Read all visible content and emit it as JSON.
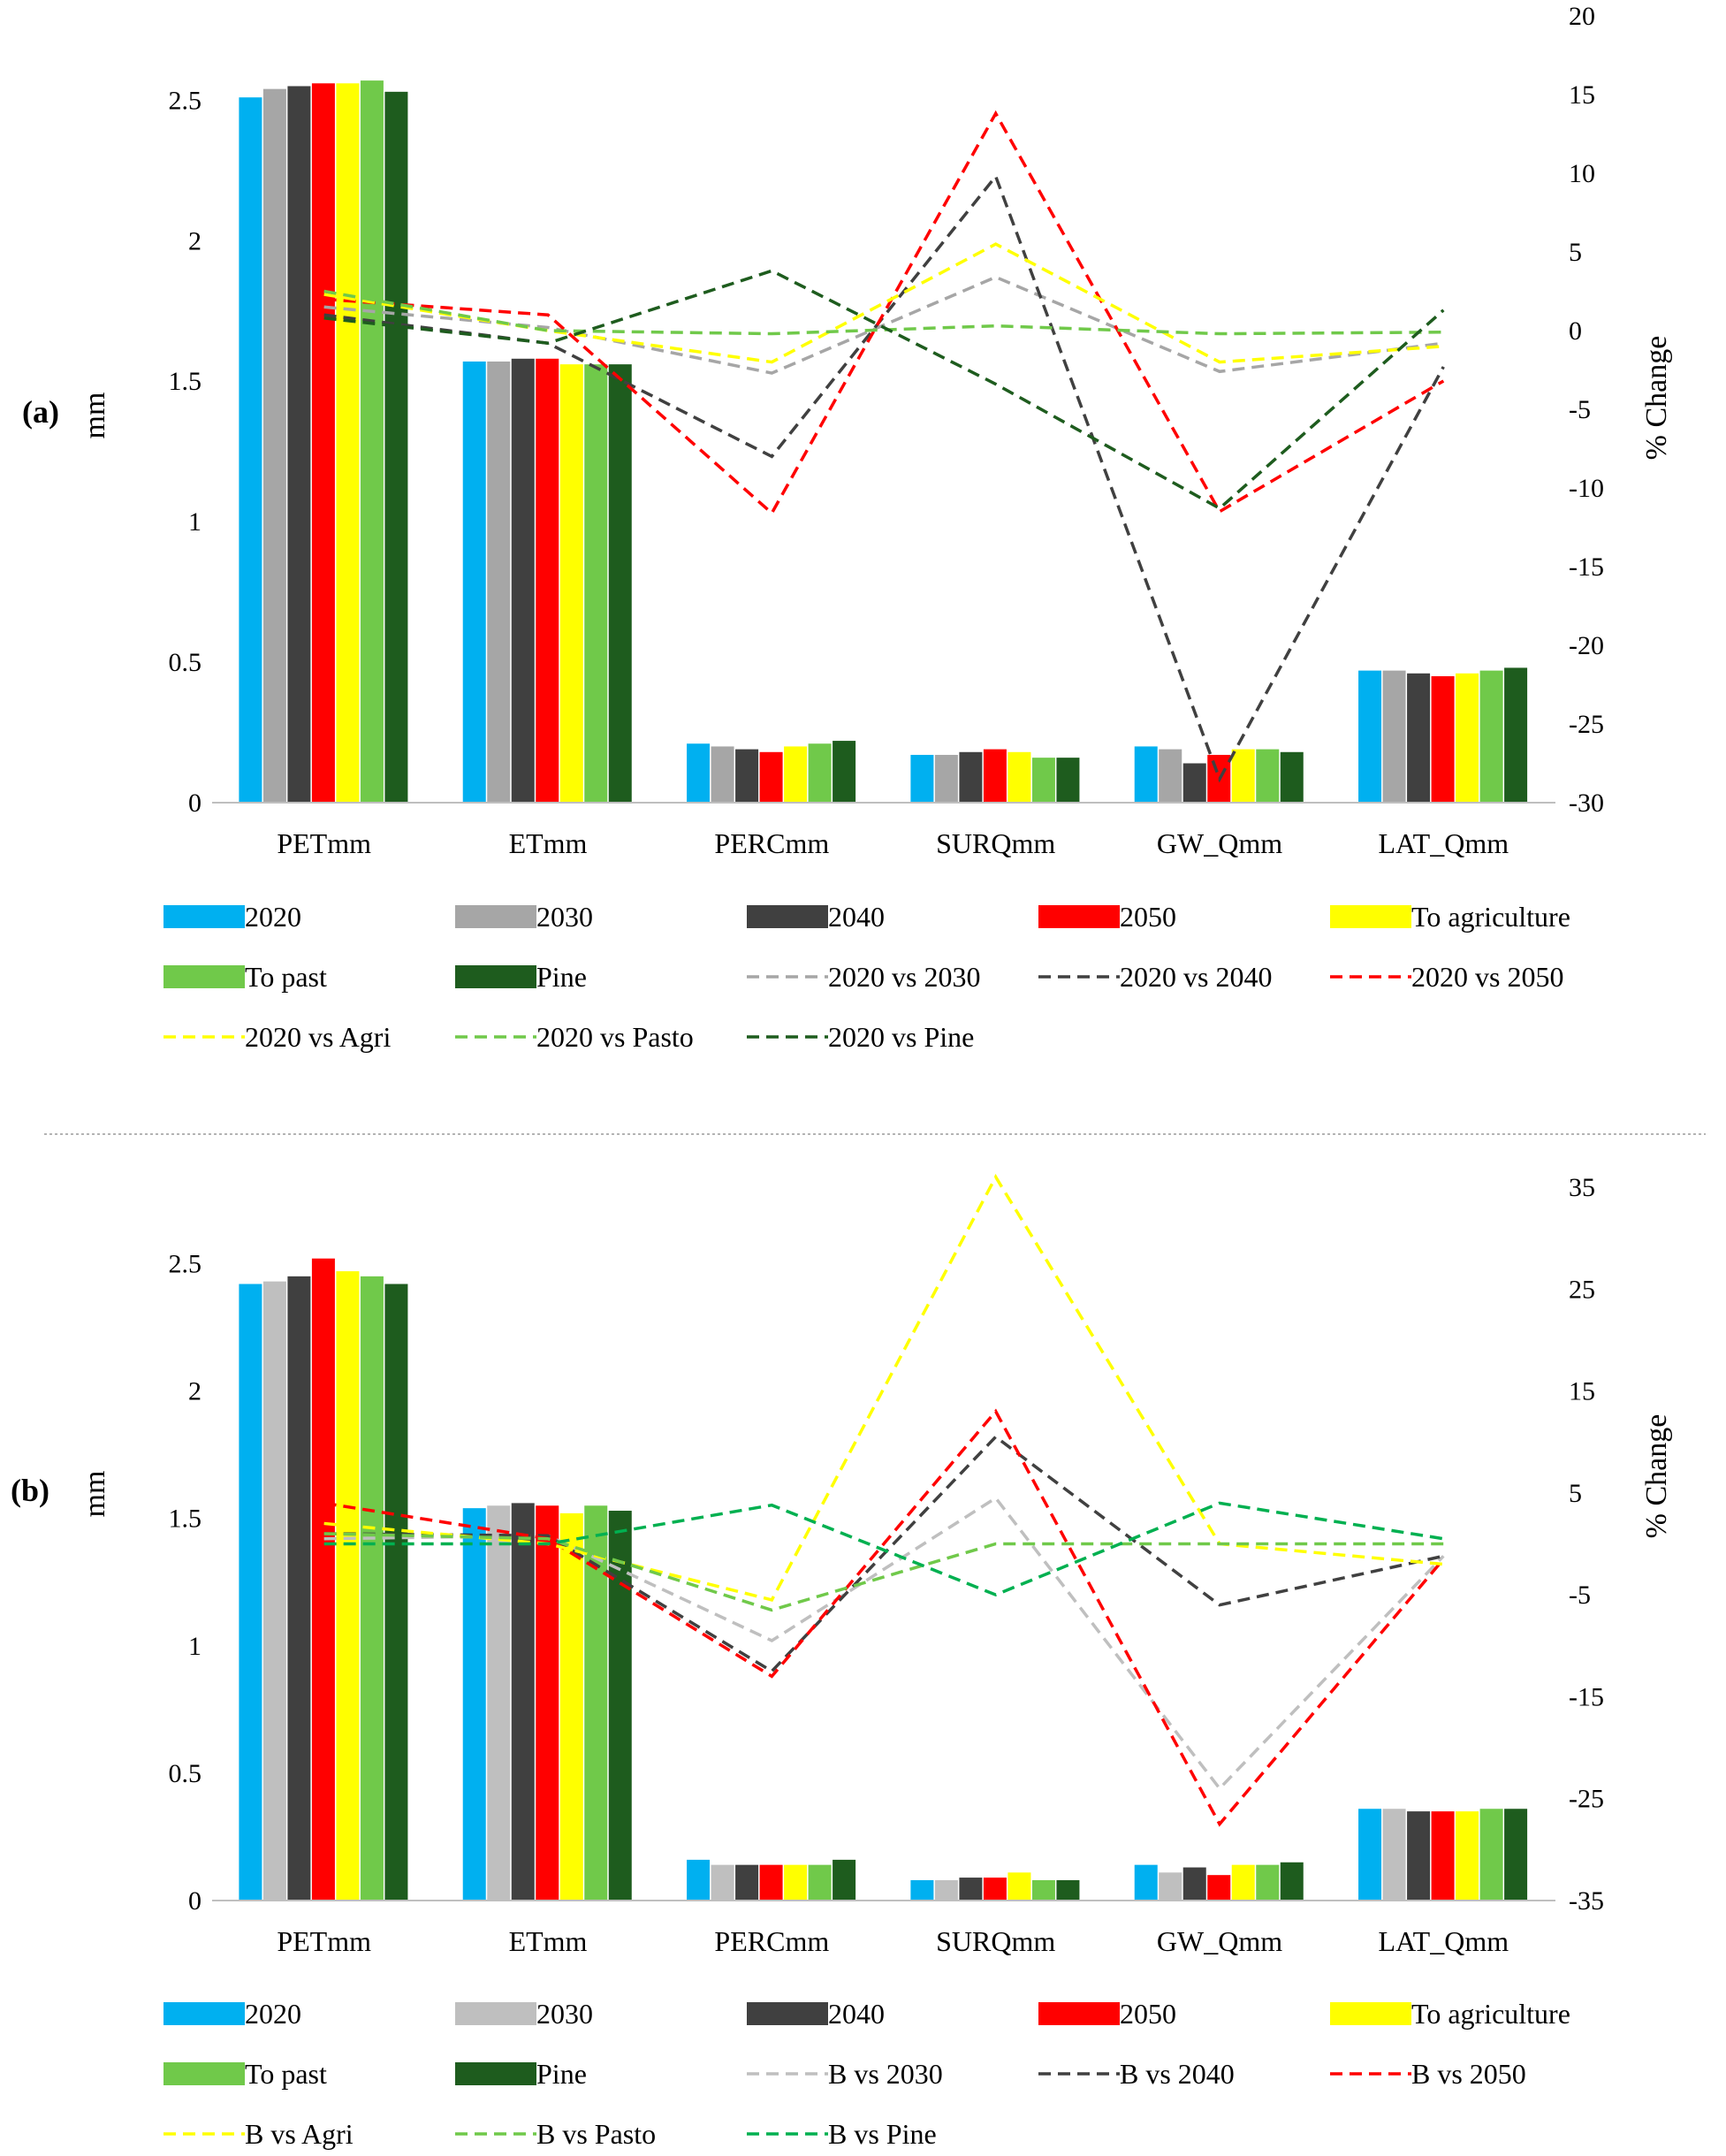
{
  "chart_data": [
    {
      "panel_label": "(a)",
      "type": "bar",
      "categories": [
        "PETmm",
        "ETmm",
        "PERCmm",
        "SURQmm",
        "GW_Qmm",
        "LAT_Qmm"
      ],
      "ylabel": "mm",
      "y2label": "% Change",
      "ylim": [
        0,
        2.8
      ],
      "y2lim": [
        -30,
        20
      ],
      "yticks": [
        "0",
        "0.5",
        "1",
        "1.5",
        "2",
        "2.5"
      ],
      "y2ticks": [
        "20",
        "15",
        "10",
        "5",
        "0",
        "-5",
        "-10",
        "-15",
        "-20",
        "-25",
        "-30"
      ],
      "bar_series": [
        {
          "name": "2020",
          "color": "#00b0f0",
          "values": [
            2.51,
            1.57,
            0.21,
            0.17,
            0.2,
            0.47
          ]
        },
        {
          "name": "2030",
          "color": "#a6a6a6",
          "values": [
            2.54,
            1.57,
            0.2,
            0.17,
            0.19,
            0.47
          ]
        },
        {
          "name": "2040",
          "color": "#404040",
          "values": [
            2.55,
            1.58,
            0.19,
            0.18,
            0.14,
            0.46
          ]
        },
        {
          "name": "2050",
          "color": "#ff0000",
          "values": [
            2.56,
            1.58,
            0.18,
            0.19,
            0.17,
            0.45
          ]
        },
        {
          "name": "To agriculture",
          "color": "#ffff00",
          "values": [
            2.56,
            1.56,
            0.2,
            0.18,
            0.19,
            0.46
          ]
        },
        {
          "name": "To past",
          "color": "#70c94a",
          "values": [
            2.57,
            1.56,
            0.21,
            0.16,
            0.19,
            0.47
          ]
        },
        {
          "name": "Pine",
          "color": "#1e5c1e",
          "values": [
            2.53,
            1.56,
            0.22,
            0.16,
            0.18,
            0.48
          ]
        }
      ],
      "line_series": [
        {
          "name": "2020 vs 2030",
          "color": "#a6a6a6",
          "values": [
            1.5,
            0.2,
            -2.7,
            3.4,
            -2.6,
            -0.8
          ]
        },
        {
          "name": "2020 vs 2040",
          "color": "#404040",
          "values": [
            1.0,
            -0.8,
            -8.0,
            9.8,
            -28.5,
            -2.3
          ]
        },
        {
          "name": "2020  vs 2050",
          "color": "#ff0000",
          "values": [
            2.0,
            1.0,
            -11.6,
            13.8,
            -11.5,
            -3.2
          ]
        },
        {
          "name": "2020  vs Agri",
          "color": "#ffff00",
          "values": [
            2.3,
            0.0,
            -2.0,
            5.5,
            -2.0,
            -1.0
          ]
        },
        {
          "name": "2020 vs Pasto",
          "color": "#70c94a",
          "values": [
            2.5,
            0.0,
            -0.2,
            0.3,
            -0.2,
            -0.1
          ]
        },
        {
          "name": "2020  vs Pine",
          "color": "#1e5c1e",
          "values": [
            0.8,
            -0.8,
            3.8,
            -3.4,
            -11.3,
            1.3
          ]
        }
      ]
    },
    {
      "panel_label": "(b)",
      "type": "bar",
      "categories": [
        "PETmm",
        "ETmm",
        "PERCmm",
        "SURQmm",
        "GW_Qmm",
        "LAT_Qmm"
      ],
      "ylabel": "mm",
      "y2label": "% Change",
      "ylim": [
        0,
        2.8
      ],
      "y2lim": [
        -35,
        35
      ],
      "yticks": [
        "0",
        "0.5",
        "1",
        "1.5",
        "2",
        "2.5"
      ],
      "y2ticks": [
        "35",
        "25",
        "15",
        "5",
        "-5",
        "-15",
        "-25",
        "-35"
      ],
      "bar_series": [
        {
          "name": "2020",
          "color": "#00b0f0",
          "values": [
            2.42,
            1.54,
            0.16,
            0.08,
            0.14,
            0.36
          ]
        },
        {
          "name": "2030",
          "color": "#bfbfbf",
          "values": [
            2.43,
            1.55,
            0.14,
            0.08,
            0.11,
            0.36
          ]
        },
        {
          "name": "2040",
          "color": "#404040",
          "values": [
            2.45,
            1.56,
            0.14,
            0.09,
            0.13,
            0.35
          ]
        },
        {
          "name": "2050",
          "color": "#ff0000",
          "values": [
            2.52,
            1.55,
            0.14,
            0.09,
            0.1,
            0.35
          ]
        },
        {
          "name": "To agriculture",
          "color": "#ffff00",
          "values": [
            2.47,
            1.52,
            0.14,
            0.11,
            0.14,
            0.35
          ]
        },
        {
          "name": "To past",
          "color": "#70c94a",
          "values": [
            2.45,
            1.55,
            0.14,
            0.08,
            0.14,
            0.36
          ]
        },
        {
          "name": "Pine",
          "color": "#1e5c1e",
          "values": [
            2.42,
            1.53,
            0.16,
            0.08,
            0.15,
            0.36
          ]
        }
      ],
      "line_series": [
        {
          "name": "B vs 2030",
          "color": "#bfbfbf",
          "values": [
            0.5,
            0.8,
            -9.5,
            4.5,
            -24.0,
            -1.2
          ]
        },
        {
          "name": "B  vs 2040",
          "color": "#404040",
          "values": [
            1.0,
            0.8,
            -12.5,
            10.5,
            -6.0,
            -1.2
          ]
        },
        {
          "name": "B  vs 2050",
          "color": "#ff0000",
          "values": [
            4.0,
            0.5,
            -13.0,
            13.0,
            -27.5,
            -1.5
          ]
        },
        {
          "name": "B  vs Agri",
          "color": "#ffff00",
          "values": [
            2.0,
            0.0,
            -5.5,
            36.0,
            0.0,
            -2.0
          ]
        },
        {
          "name": "B  vs Pasto",
          "color": "#70c94a",
          "values": [
            1.0,
            0.5,
            -6.5,
            0.0,
            0.0,
            0.0
          ]
        },
        {
          "name": "B  vs Pine",
          "color": "#00b050",
          "values": [
            0.0,
            0.0,
            3.8,
            -5.0,
            4.0,
            0.5
          ]
        }
      ]
    }
  ]
}
